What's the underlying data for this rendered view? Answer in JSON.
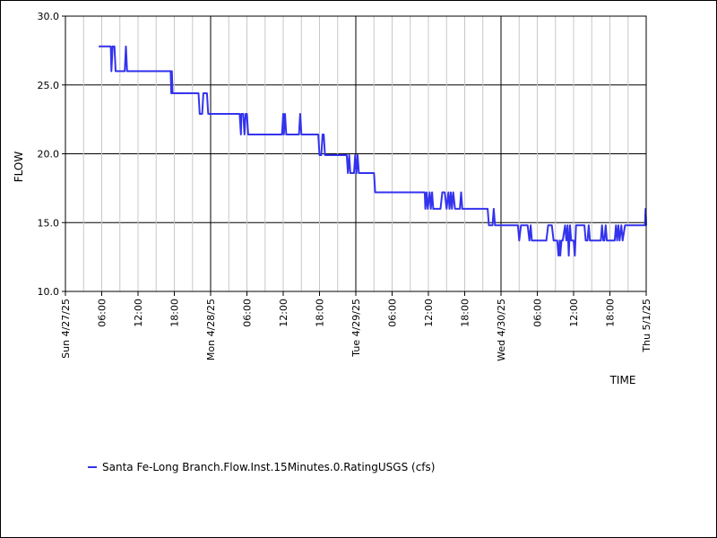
{
  "chart_data": {
    "type": "line",
    "title": "",
    "xlabel": "TIME",
    "ylabel": "FLOW",
    "y_ticks": [
      "30.0",
      "25.0",
      "20.0",
      "15.0",
      "10.0"
    ],
    "ylim": [
      10,
      30
    ],
    "x_range_hours": [
      0,
      96
    ],
    "x_ticks": [
      {
        "hour": 0,
        "label": "Sun 4/27/25",
        "major": true
      },
      {
        "hour": 6,
        "label": "06:00",
        "major": false
      },
      {
        "hour": 12,
        "label": "12:00",
        "major": false
      },
      {
        "hour": 18,
        "label": "18:00",
        "major": false
      },
      {
        "hour": 24,
        "label": "Mon 4/28/25",
        "major": true
      },
      {
        "hour": 30,
        "label": "06:00",
        "major": false
      },
      {
        "hour": 36,
        "label": "12:00",
        "major": false
      },
      {
        "hour": 42,
        "label": "18:00",
        "major": false
      },
      {
        "hour": 48,
        "label": "Tue 4/29/25",
        "major": true
      },
      {
        "hour": 54,
        "label": "06:00",
        "major": false
      },
      {
        "hour": 60,
        "label": "12:00",
        "major": false
      },
      {
        "hour": 66,
        "label": "18:00",
        "major": false
      },
      {
        "hour": 72,
        "label": "Wed 4/30/25",
        "major": true
      },
      {
        "hour": 78,
        "label": "06:00",
        "major": false
      },
      {
        "hour": 84,
        "label": "12:00",
        "major": false
      },
      {
        "hour": 90,
        "label": "18:00",
        "major": false
      },
      {
        "hour": 96,
        "label": "Thu 5/1/25",
        "major": true
      }
    ],
    "grid": true,
    "series": [
      {
        "name": "Santa Fe-Long Branch.Flow.Inst.15Minutes.0.RatingUSGS (cfs)",
        "color": "#3333ee",
        "points": [
          [
            5.5,
            27.8
          ],
          [
            7.5,
            27.8
          ],
          [
            7.6,
            26.0
          ],
          [
            7.8,
            27.8
          ],
          [
            8.1,
            27.8
          ],
          [
            8.3,
            26.0
          ],
          [
            9.8,
            26.0
          ],
          [
            10.0,
            27.8
          ],
          [
            10.2,
            26.0
          ],
          [
            17.4,
            26.0
          ],
          [
            17.5,
            24.4
          ],
          [
            17.6,
            26.0
          ],
          [
            17.7,
            24.4
          ],
          [
            22.0,
            24.4
          ],
          [
            22.2,
            22.9
          ],
          [
            22.6,
            22.9
          ],
          [
            22.8,
            24.4
          ],
          [
            23.4,
            24.4
          ],
          [
            23.6,
            22.9
          ],
          [
            28.8,
            22.9
          ],
          [
            29.0,
            21.4
          ],
          [
            29.1,
            22.9
          ],
          [
            29.4,
            22.9
          ],
          [
            29.6,
            21.4
          ],
          [
            29.8,
            22.9
          ],
          [
            30.0,
            22.9
          ],
          [
            30.2,
            21.4
          ],
          [
            35.8,
            21.4
          ],
          [
            36.0,
            22.9
          ],
          [
            36.1,
            21.4
          ],
          [
            36.3,
            22.9
          ],
          [
            36.5,
            21.4
          ],
          [
            38.6,
            21.4
          ],
          [
            38.8,
            22.9
          ],
          [
            39.0,
            21.4
          ],
          [
            41.8,
            21.4
          ],
          [
            42.0,
            19.9
          ],
          [
            42.3,
            19.9
          ],
          [
            42.5,
            21.4
          ],
          [
            42.7,
            21.4
          ],
          [
            42.9,
            19.9
          ],
          [
            46.5,
            19.9
          ],
          [
            46.7,
            18.6
          ],
          [
            46.9,
            19.9
          ],
          [
            47.1,
            18.6
          ],
          [
            47.7,
            18.6
          ],
          [
            47.9,
            19.9
          ],
          [
            48.1,
            18.6
          ],
          [
            48.3,
            19.9
          ],
          [
            48.5,
            18.6
          ],
          [
            51.0,
            18.6
          ],
          [
            51.2,
            17.2
          ],
          [
            59.4,
            17.2
          ],
          [
            59.5,
            16.0
          ],
          [
            59.7,
            17.2
          ],
          [
            59.9,
            16.0
          ],
          [
            60.2,
            17.2
          ],
          [
            60.4,
            16.0
          ],
          [
            60.6,
            17.2
          ],
          [
            60.8,
            16.0
          ],
          [
            62.0,
            16.0
          ],
          [
            62.3,
            17.2
          ],
          [
            62.7,
            17.2
          ],
          [
            63.0,
            16.0
          ],
          [
            63.3,
            17.2
          ],
          [
            63.5,
            16.0
          ],
          [
            63.7,
            17.2
          ],
          [
            63.9,
            16.0
          ],
          [
            64.1,
            17.2
          ],
          [
            64.4,
            16.0
          ],
          [
            65.2,
            16.0
          ],
          [
            65.4,
            17.2
          ],
          [
            65.6,
            16.0
          ],
          [
            69.8,
            16.0
          ],
          [
            70.0,
            14.8
          ],
          [
            70.6,
            14.8
          ],
          [
            70.8,
            16.0
          ],
          [
            71.0,
            14.8
          ],
          [
            74.8,
            14.8
          ],
          [
            75.0,
            13.7
          ],
          [
            75.3,
            14.8
          ],
          [
            76.4,
            14.8
          ],
          [
            76.7,
            13.7
          ],
          [
            76.9,
            14.8
          ],
          [
            77.1,
            13.7
          ],
          [
            79.5,
            13.7
          ],
          [
            79.8,
            14.8
          ],
          [
            80.4,
            14.8
          ],
          [
            80.7,
            13.7
          ],
          [
            81.3,
            13.7
          ],
          [
            81.5,
            12.6
          ],
          [
            81.7,
            13.7
          ],
          [
            81.8,
            12.6
          ],
          [
            82.0,
            13.7
          ],
          [
            82.2,
            13.7
          ],
          [
            82.6,
            14.8
          ],
          [
            82.8,
            13.7
          ],
          [
            83.0,
            14.8
          ],
          [
            83.2,
            12.6
          ],
          [
            83.4,
            14.8
          ],
          [
            83.6,
            13.7
          ],
          [
            84.0,
            13.7
          ],
          [
            84.2,
            12.6
          ],
          [
            84.4,
            14.8
          ],
          [
            85.8,
            14.8
          ],
          [
            86.0,
            13.7
          ],
          [
            86.3,
            13.7
          ],
          [
            86.5,
            14.8
          ],
          [
            86.7,
            13.7
          ],
          [
            88.5,
            13.7
          ],
          [
            88.7,
            14.8
          ],
          [
            88.9,
            13.7
          ],
          [
            89.1,
            13.7
          ],
          [
            89.3,
            14.8
          ],
          [
            89.5,
            13.7
          ],
          [
            90.8,
            13.7
          ],
          [
            91.0,
            14.8
          ],
          [
            91.2,
            13.7
          ],
          [
            91.4,
            14.8
          ],
          [
            91.6,
            13.7
          ],
          [
            91.9,
            14.8
          ],
          [
            92.1,
            13.7
          ],
          [
            92.5,
            14.8
          ],
          [
            95.8,
            14.8
          ],
          [
            95.9,
            16.0
          ],
          [
            96.0,
            14.8
          ]
        ]
      }
    ]
  }
}
